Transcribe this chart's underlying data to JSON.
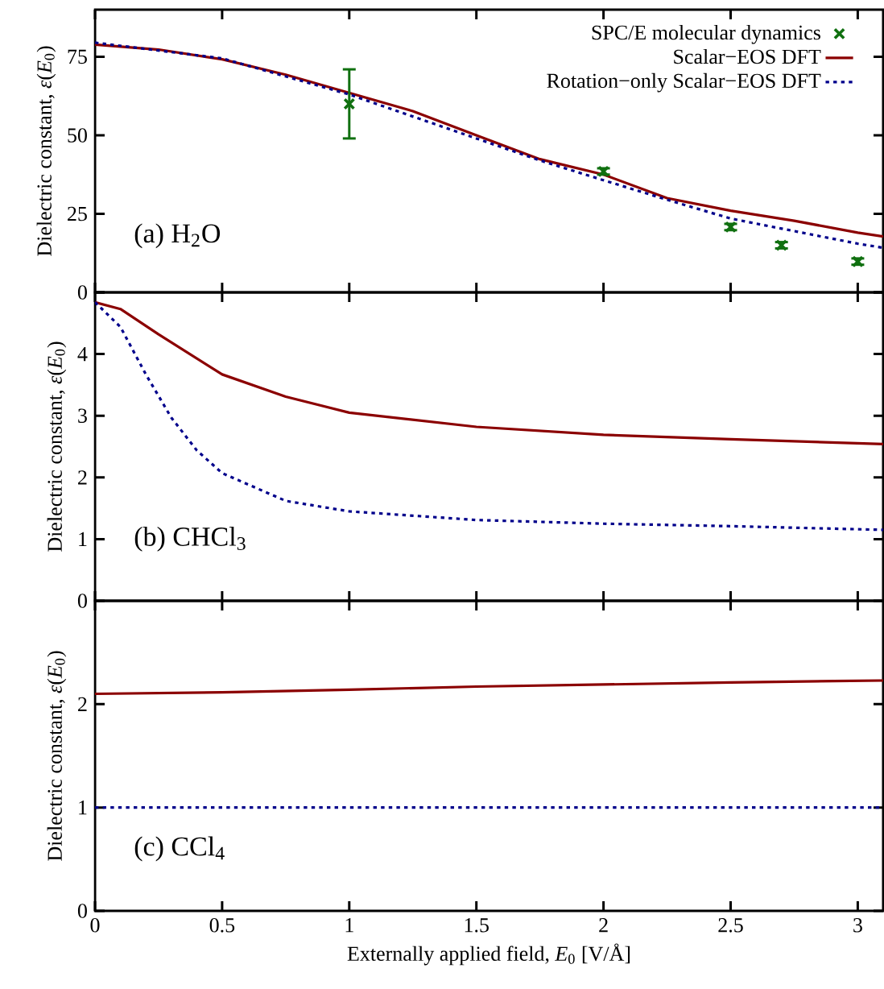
{
  "chart_data": [
    {
      "type": "line",
      "ylabel": "Dielectric constant, *ε*(*E*$_{0}$)",
      "annotations": [
        "(a) H$_{2}$O"
      ],
      "xlim": [
        0,
        3.1
      ],
      "xticks": [
        0,
        0.5,
        1,
        1.5,
        2,
        2.5,
        3
      ],
      "ylim": [
        0,
        90
      ],
      "yticks": [
        0,
        25,
        50,
        75
      ],
      "tick_labels": "y",
      "legend": "top right",
      "series": [
        {
          "name": "SPC/E molecular dynamics",
          "type": "scatter",
          "marker": "cross",
          "color": "#107010",
          "x": [
            1,
            2,
            2.5,
            2.7,
            3
          ],
          "values": [
            60,
            38.5,
            20.8,
            15,
            9.8
          ],
          "errors": [
            11,
            1,
            1,
            1,
            1
          ]
        },
        {
          "name": "Scalar−EOS DFT",
          "line_style": "solid",
          "color": "#8b0000",
          "x": [
            0,
            0.25,
            0.5,
            0.75,
            1,
            1.25,
            1.5,
            1.75,
            2,
            2.25,
            2.5,
            2.75,
            3,
            3.1
          ],
          "values": [
            78.9,
            77.3,
            74.2,
            69.3,
            63.5,
            57.7,
            50,
            42.4,
            37.5,
            30,
            26,
            22.8,
            19,
            17.8
          ]
        },
        {
          "name": "Rotation−only Scalar−EOS DFT",
          "line_style": "dotted",
          "color": "#00008b",
          "x": [
            0,
            0.5,
            1,
            1.25,
            1.5,
            1.75,
            2,
            2.25,
            2.5,
            2.75,
            3,
            3.1
          ],
          "values": [
            79.5,
            74.5,
            63,
            56,
            49,
            42,
            35.7,
            29.5,
            23.5,
            19.5,
            15.5,
            14.2
          ]
        }
      ]
    },
    {
      "type": "line",
      "ylabel": "Dielectric constant, *ε*(*E*$_{0}$)",
      "annotations": [
        "(b) CHCl$_{3}$"
      ],
      "xlim": [
        0,
        3.1
      ],
      "xticks": [
        0,
        0.5,
        1,
        1.5,
        2,
        2.5,
        3
      ],
      "ylim": [
        0,
        5
      ],
      "yticks": [
        0,
        1,
        2,
        3,
        4,
        {
          "value": 5,
          "label": null
        }
      ],
      "tick_labels": "y",
      "series": [
        {
          "line_style": "solid",
          "color": "#8b0000",
          "x": [
            0,
            0.1,
            0.25,
            0.5,
            0.75,
            1,
            1.5,
            2,
            2.5,
            3.1
          ],
          "values": [
            4.84,
            4.73,
            4.32,
            3.67,
            3.31,
            3.05,
            2.82,
            2.69,
            2.62,
            2.54
          ]
        },
        {
          "line_style": "dotted",
          "color": "#00008b",
          "x": [
            0,
            0.1,
            0.2,
            0.3,
            0.4,
            0.5,
            0.75,
            1,
            1.5,
            2,
            2.5,
            3.1
          ],
          "values": [
            4.84,
            4.44,
            3.67,
            2.97,
            2.44,
            2.07,
            1.62,
            1.45,
            1.31,
            1.25,
            1.21,
            1.15
          ]
        }
      ]
    },
    {
      "type": "line",
      "ylabel": "Dielectric constant, *ε*(*E*$_{0}$)",
      "xlabel": "Externally applied field, *E*$_{0}$ [V/Å]",
      "annotations": [
        "(c) CCl$_{4}$"
      ],
      "xlim": [
        0,
        3.1
      ],
      "xticks": [
        0,
        0.5,
        1,
        1.5,
        2,
        2.5,
        3
      ],
      "ylim": [
        0,
        3
      ],
      "yticks": [
        0,
        1,
        2
      ],
      "series": [
        {
          "line_style": "solid",
          "color": "#8b0000",
          "x": [
            0,
            0.5,
            1,
            1.5,
            2,
            2.5,
            3.1
          ],
          "values": [
            2.1,
            2.115,
            2.14,
            2.17,
            2.19,
            2.21,
            2.23
          ]
        },
        {
          "line_style": "dotted",
          "color": "#00008b",
          "x": [
            0,
            1,
            2,
            3.1
          ],
          "values": [
            1,
            1,
            1,
            1
          ]
        }
      ]
    }
  ]
}
